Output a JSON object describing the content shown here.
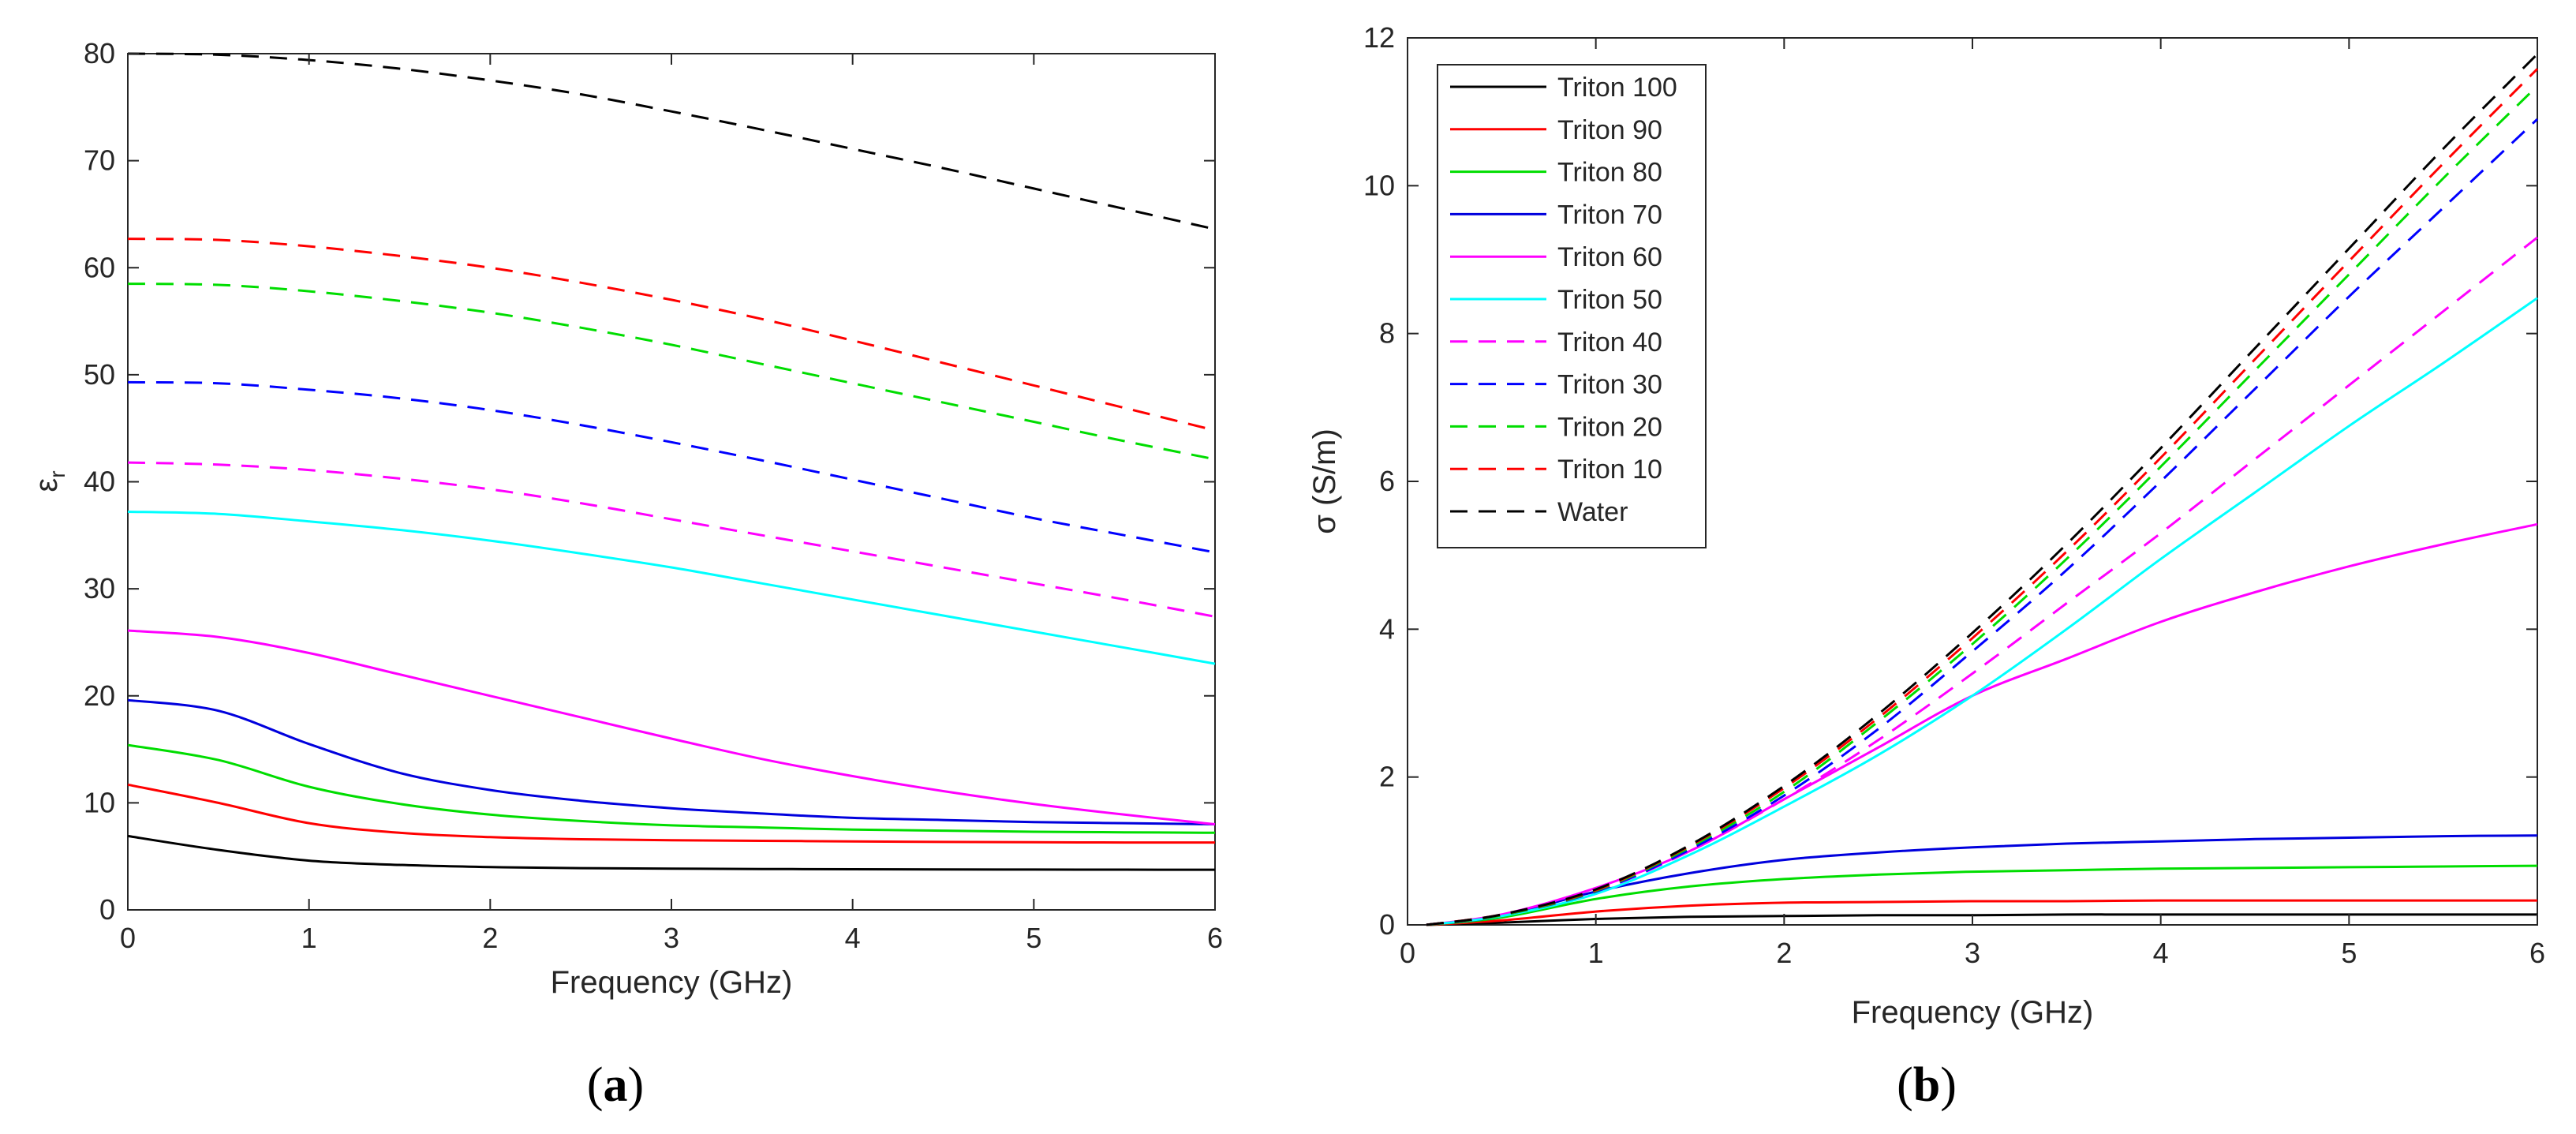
{
  "chart_data": [
    {
      "type": "line",
      "caption_letter": "a",
      "title": "",
      "xlabel": "Frequency (GHz)",
      "ylabel_symbol": "ε",
      "ylabel_subscript": "r",
      "xlim": [
        0,
        6
      ],
      "ylim": [
        0,
        80
      ],
      "xticks": [
        "0",
        "1",
        "2",
        "3",
        "4",
        "5",
        "6"
      ],
      "yticks": [
        "0",
        "10",
        "20",
        "30",
        "40",
        "50",
        "60",
        "70",
        "80"
      ],
      "grid": false,
      "legend": false,
      "x": [
        0,
        0.5,
        1,
        1.5,
        2,
        2.5,
        3,
        3.5,
        4,
        4.5,
        5,
        5.5,
        6
      ],
      "series": [
        {
          "name": "Triton 100",
          "color": "#000000",
          "dash": "solid",
          "values": [
            6.9,
            5.6,
            4.6,
            4.2,
            4.0,
            3.9,
            3.85,
            3.82,
            3.8,
            3.78,
            3.77,
            3.76,
            3.75
          ]
        },
        {
          "name": "Triton 90",
          "color": "#ff0000",
          "dash": "solid",
          "values": [
            11.7,
            10.0,
            8.1,
            7.2,
            6.8,
            6.6,
            6.5,
            6.45,
            6.4,
            6.35,
            6.32,
            6.3,
            6.3
          ]
        },
        {
          "name": "Triton 80",
          "color": "#00dd00",
          "dash": "solid",
          "values": [
            15.4,
            14.0,
            11.5,
            9.9,
            8.9,
            8.3,
            7.9,
            7.7,
            7.5,
            7.4,
            7.3,
            7.25,
            7.2
          ]
        },
        {
          "name": "Triton 70",
          "color": "#0000dd",
          "dash": "solid",
          "values": [
            19.6,
            18.6,
            15.5,
            12.8,
            11.2,
            10.2,
            9.5,
            9.0,
            8.6,
            8.4,
            8.2,
            8.1,
            8.0
          ]
        },
        {
          "name": "Triton 60",
          "color": "#ff00ff",
          "dash": "solid",
          "values": [
            26.1,
            25.5,
            24.0,
            22.0,
            20.0,
            18.0,
            16.0,
            14.1,
            12.5,
            11.1,
            9.9,
            8.9,
            8.0
          ]
        },
        {
          "name": "Triton 50",
          "color": "#00ffff",
          "dash": "solid",
          "values": [
            37.2,
            37.0,
            36.3,
            35.5,
            34.5,
            33.3,
            32.0,
            30.5,
            29.0,
            27.5,
            26.0,
            24.5,
            23.0
          ]
        },
        {
          "name": "Triton 40",
          "color": "#ff00ff",
          "dash": "dashed",
          "values": [
            41.8,
            41.6,
            41.1,
            40.3,
            39.3,
            38.0,
            36.5,
            35.0,
            33.5,
            32.0,
            30.5,
            29.0,
            27.4
          ]
        },
        {
          "name": "Triton 30",
          "color": "#0000ff",
          "dash": "dashed",
          "values": [
            49.3,
            49.2,
            48.6,
            47.8,
            46.7,
            45.3,
            43.7,
            42.0,
            40.2,
            38.4,
            36.6,
            35.0,
            33.4
          ]
        },
        {
          "name": "Triton 20",
          "color": "#00dd00",
          "dash": "dashed",
          "values": [
            58.5,
            58.4,
            57.8,
            56.9,
            55.8,
            54.4,
            52.8,
            51.0,
            49.2,
            47.4,
            45.6,
            43.8,
            42.1
          ]
        },
        {
          "name": "Triton 10",
          "color": "#ff0000",
          "dash": "dashed",
          "values": [
            62.7,
            62.6,
            62.0,
            61.1,
            60.0,
            58.6,
            57.0,
            55.2,
            53.2,
            51.1,
            49.0,
            46.9,
            44.8
          ]
        },
        {
          "name": "Water",
          "color": "#000000",
          "dash": "dashed",
          "values": [
            80.0,
            79.9,
            79.4,
            78.6,
            77.5,
            76.2,
            74.6,
            72.9,
            71.1,
            69.3,
            67.4,
            65.5,
            63.6
          ]
        }
      ]
    },
    {
      "type": "line",
      "caption_letter": "b",
      "title": "",
      "xlabel": "Frequency (GHz)",
      "ylabel": "σ (S/m)",
      "xlim": [
        0,
        6
      ],
      "ylim": [
        0,
        12
      ],
      "xticks": [
        "0",
        "1",
        "2",
        "3",
        "4",
        "5",
        "6"
      ],
      "yticks": [
        "0",
        "2",
        "4",
        "6",
        "8",
        "10",
        "12"
      ],
      "grid": false,
      "legend": true,
      "legend_location": "top-left",
      "x": [
        0.1,
        0.5,
        1,
        1.5,
        2,
        2.5,
        3,
        3.5,
        4,
        4.5,
        5,
        5.5,
        6
      ],
      "series": [
        {
          "name": "Triton 100",
          "color": "#000000",
          "dash": "solid",
          "values": [
            0.0,
            0.03,
            0.08,
            0.11,
            0.12,
            0.13,
            0.13,
            0.14,
            0.14,
            0.14,
            0.14,
            0.14,
            0.14
          ]
        },
        {
          "name": "Triton 90",
          "color": "#ff0000",
          "dash": "solid",
          "values": [
            0.0,
            0.06,
            0.18,
            0.26,
            0.3,
            0.31,
            0.32,
            0.32,
            0.33,
            0.33,
            0.33,
            0.33,
            0.33
          ]
        },
        {
          "name": "Triton 80",
          "color": "#00dd00",
          "dash": "solid",
          "values": [
            0.0,
            0.1,
            0.35,
            0.52,
            0.62,
            0.68,
            0.72,
            0.74,
            0.76,
            0.77,
            0.78,
            0.79,
            0.8
          ]
        },
        {
          "name": "Triton 70",
          "color": "#0000dd",
          "dash": "solid",
          "values": [
            0.0,
            0.12,
            0.45,
            0.7,
            0.88,
            0.98,
            1.05,
            1.1,
            1.13,
            1.16,
            1.18,
            1.2,
            1.21
          ]
        },
        {
          "name": "Triton 60",
          "color": "#ff00ff",
          "dash": "solid",
          "values": [
            0.0,
            0.14,
            0.5,
            1.0,
            1.7,
            2.4,
            3.1,
            3.6,
            4.1,
            4.5,
            4.85,
            5.15,
            5.42
          ]
        },
        {
          "name": "Triton 50",
          "color": "#00ffff",
          "dash": "solid",
          "values": [
            0.0,
            0.12,
            0.42,
            0.95,
            1.6,
            2.3,
            3.1,
            4.0,
            4.95,
            5.85,
            6.75,
            7.6,
            8.48
          ]
        },
        {
          "name": "Triton 40",
          "color": "#ff00ff",
          "dash": "dashed",
          "values": [
            0.0,
            0.13,
            0.45,
            1.0,
            1.7,
            2.5,
            3.4,
            4.35,
            5.3,
            6.3,
            7.3,
            8.3,
            9.3
          ]
        },
        {
          "name": "Triton 30",
          "color": "#0000ff",
          "dash": "dashed",
          "values": [
            0.0,
            0.13,
            0.45,
            1.02,
            1.75,
            2.65,
            3.7,
            4.8,
            6.0,
            7.25,
            8.5,
            9.7,
            10.9
          ]
        },
        {
          "name": "Triton 20",
          "color": "#00dd00",
          "dash": "dashed",
          "values": [
            0.0,
            0.13,
            0.46,
            1.05,
            1.8,
            2.75,
            3.8,
            4.95,
            6.2,
            7.5,
            8.8,
            10.1,
            11.35
          ]
        },
        {
          "name": "Triton 10",
          "color": "#ff0000",
          "dash": "dashed",
          "values": [
            0.0,
            0.14,
            0.47,
            1.07,
            1.85,
            2.8,
            3.88,
            5.05,
            6.32,
            7.65,
            8.98,
            10.3,
            11.58
          ]
        },
        {
          "name": "Water",
          "color": "#000000",
          "dash": "dashed",
          "values": [
            0.0,
            0.14,
            0.48,
            1.08,
            1.88,
            2.85,
            3.95,
            5.15,
            6.45,
            7.8,
            9.15,
            10.5,
            11.78
          ]
        }
      ]
    }
  ]
}
